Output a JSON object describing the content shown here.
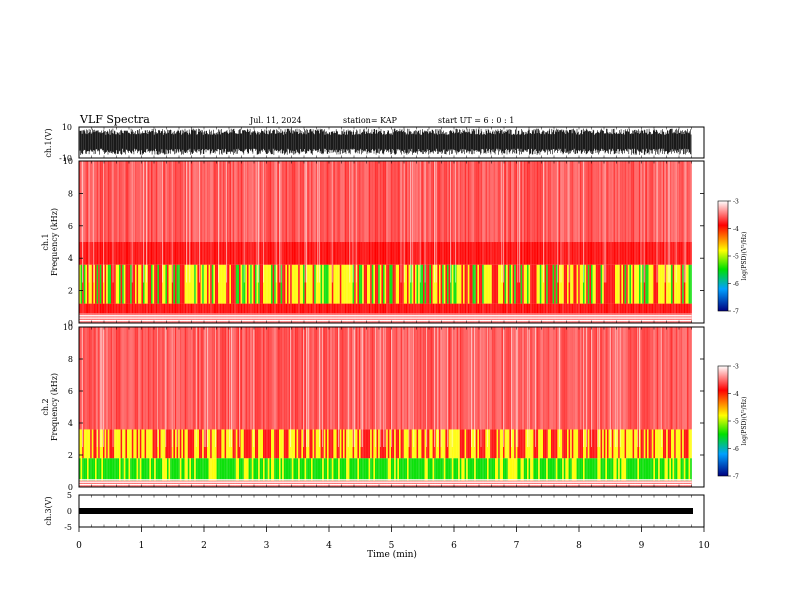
{
  "header": {
    "title": "VLF Spectra",
    "date": "Jul. 11, 2024",
    "station": "station= KAP",
    "start": "start UT =  6 : 0 : 1"
  },
  "colors": {
    "spectro_low": "#0000c8",
    "spectro_mid": "#00e000",
    "spectro_yellow": "#ffff00",
    "spectro_high": "#ff0000",
    "spectro_white": "#ffffff"
  },
  "colorbar": {
    "label": "log(PSD)(V²/Hz)",
    "ticks": [
      "-3",
      "-4",
      "-5",
      "-6",
      "-7"
    ]
  },
  "chart_data": [
    {
      "type": "line",
      "panel": "ch1-waveform",
      "ylabel": "ch.1(V)",
      "ylim": [
        -10,
        10
      ],
      "yticklabels": [
        "10",
        "-10"
      ],
      "xlim": [
        0,
        10
      ],
      "x_extent_min": 9.8,
      "description_values": {
        "signal_min_approx": -8,
        "signal_max_approx": 9
      }
    },
    {
      "type": "heatmap",
      "panel": "ch1-spectrogram",
      "ylabel": "ch.1\nFrequency (kHz)",
      "ylim": [
        0,
        10
      ],
      "yticklabels": [
        "10",
        "8",
        "6",
        "4",
        "2",
        "0"
      ],
      "xlim": [
        0,
        10
      ],
      "x_extent_min": 9.8,
      "color_range_logpsd": [
        -7,
        -3
      ],
      "bands_khz": [
        {
          "from": 0,
          "to": 0.6,
          "level": "white-banded"
        },
        {
          "from": 0.6,
          "to": 1.2,
          "level": "red"
        },
        {
          "from": 1.2,
          "to": 3.6,
          "level": "yellow-green"
        },
        {
          "from": 3.6,
          "to": 5.0,
          "level": "red"
        },
        {
          "from": 5.0,
          "to": 10,
          "level": "red-white speckle"
        }
      ]
    },
    {
      "type": "heatmap",
      "panel": "ch2-spectrogram",
      "ylabel": "ch.2\nFrequency (kHz)",
      "ylim": [
        0,
        10
      ],
      "yticklabels": [
        "10",
        "8",
        "6",
        "4",
        "2",
        "0"
      ],
      "xlim": [
        0,
        10
      ],
      "x_extent_min": 9.8,
      "color_range_logpsd": [
        -7,
        -3
      ],
      "bands_khz": [
        {
          "from": 0,
          "to": 0.4,
          "level": "white-banded"
        },
        {
          "from": 0.4,
          "to": 1.8,
          "level": "green"
        },
        {
          "from": 1.8,
          "to": 3.6,
          "level": "yellow-orange"
        },
        {
          "from": 3.6,
          "to": 10,
          "level": "red-white speckle"
        }
      ]
    },
    {
      "type": "line",
      "panel": "ch3-waveform",
      "ylabel": "ch.3(V)",
      "ylim": [
        -5,
        5
      ],
      "yticklabels": [
        "5",
        "0",
        "-5"
      ],
      "xlim": [
        0,
        10
      ],
      "x_extent_min": 9.8,
      "description_values": {
        "signal_center_approx": -0.4,
        "signal_amplitude_approx": 0.5
      }
    }
  ],
  "xaxis": {
    "label": "Time (min)",
    "ticks": [
      "0",
      "1",
      "2",
      "3",
      "4",
      "5",
      "6",
      "7",
      "8",
      "9",
      "10"
    ]
  }
}
